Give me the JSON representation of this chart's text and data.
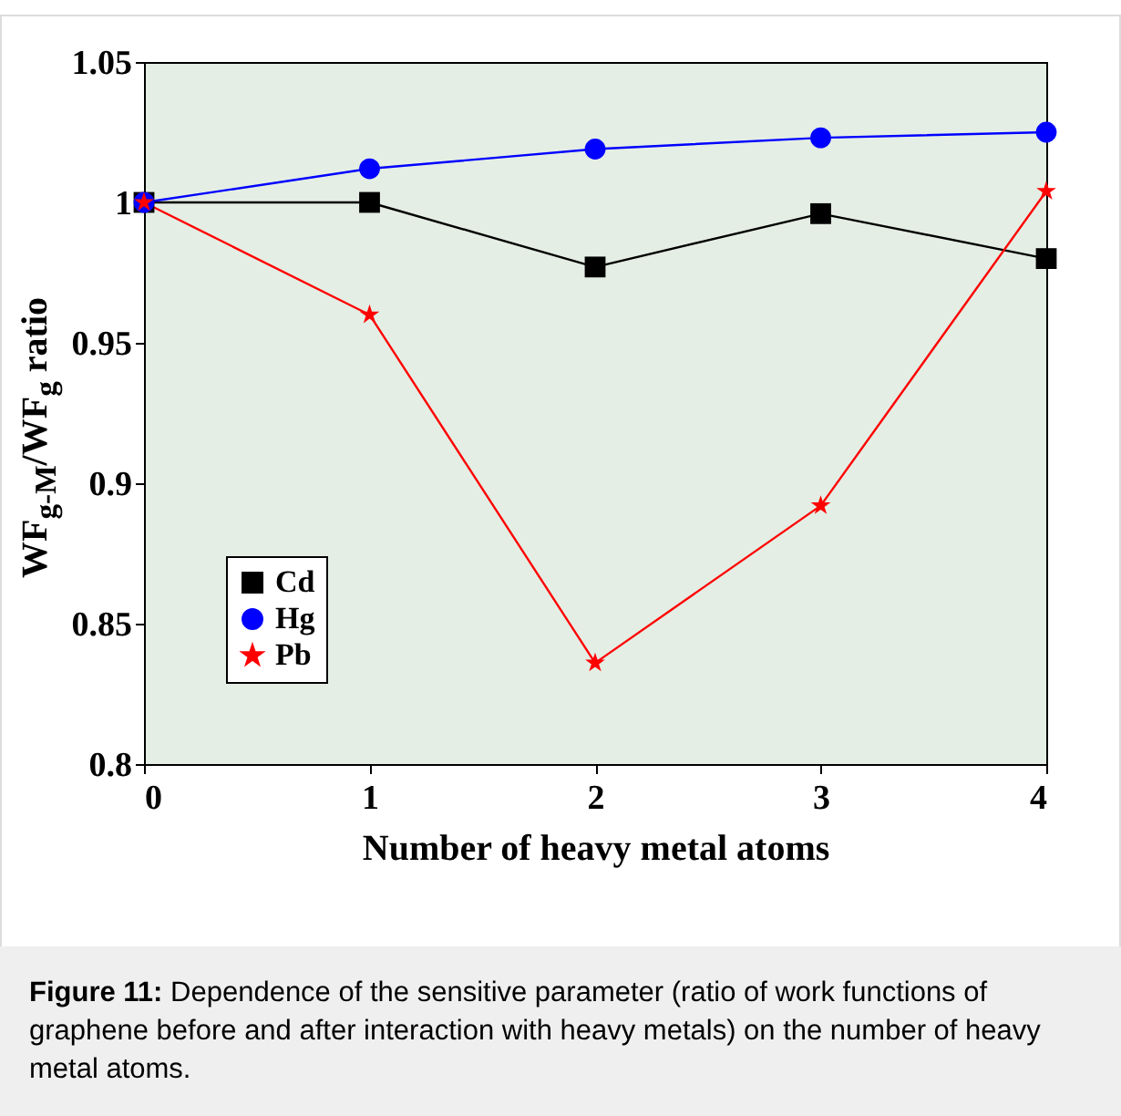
{
  "chart_data": {
    "type": "line",
    "xlabel": "Number of heavy metal atoms",
    "ylabel": "WF$_{g-M}$/WF$_{g}$ ratio",
    "x": [
      0,
      1,
      2,
      3,
      4
    ],
    "series": [
      {
        "name": "Cd",
        "color": "#000000",
        "marker": "square",
        "values": [
          1.0,
          1.0,
          0.977,
          0.996,
          0.98
        ]
      },
      {
        "name": "Hg",
        "color": "#0000ff",
        "marker": "circle",
        "values": [
          1.0,
          1.012,
          1.019,
          1.023,
          1.025
        ]
      },
      {
        "name": "Pb",
        "color": "#ff0000",
        "marker": "star",
        "values": [
          1.0,
          0.96,
          0.836,
          0.892,
          1.004
        ]
      }
    ],
    "xlim": [
      0,
      4
    ],
    "xticks": [
      0,
      1,
      2,
      3,
      4
    ],
    "ylim": [
      0.8,
      1.05
    ],
    "yticks": [
      0.8,
      0.85,
      0.9,
      0.95,
      1,
      1.05
    ],
    "grid": false,
    "legend": "bottom left",
    "line_style": "solid",
    "annotations": [
      "Figure 11: Dependence of the sensitive parameter (ratio of work functions of graphene before and after interaction with heavy metals) on the number of heavy metal atoms."
    ]
  }
}
